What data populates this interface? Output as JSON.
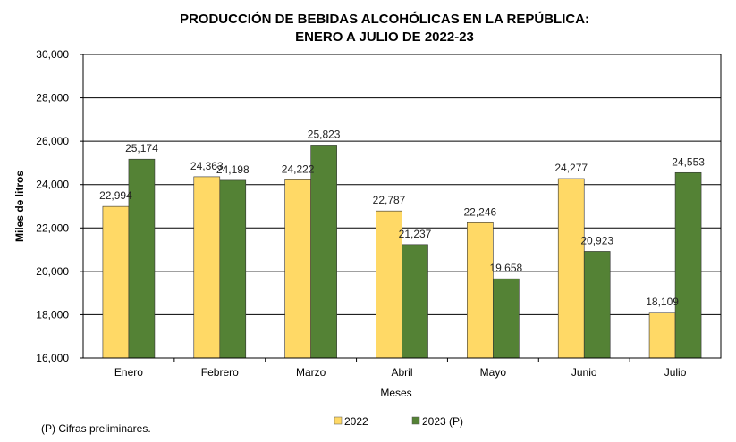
{
  "chart_data": {
    "type": "bar",
    "title_lines": [
      "PRODUCCIÓN DE BEBIDAS ALCOHÓLICAS EN LA REPÚBLICA:",
      "ENERO A JULIO DE 2022-23"
    ],
    "xlabel": "Meses",
    "ylabel": "Miles de litros",
    "ylim": [
      16000,
      30000
    ],
    "yticks": [
      16000,
      18000,
      20000,
      22000,
      24000,
      26000,
      28000,
      30000
    ],
    "ytick_labels": [
      "16,000",
      "18,000",
      "20,000",
      "22,000",
      "24,000",
      "26,000",
      "28,000",
      "30,000"
    ],
    "grid": true,
    "legend_position": "bottom",
    "categories": [
      "Enero",
      "Febrero",
      "Marzo",
      "Abril",
      "Mayo",
      "Junio",
      "Julio"
    ],
    "series": [
      {
        "name": "2022",
        "color": "#FFD966",
        "values": [
          22994,
          24363,
          24222,
          22787,
          22246,
          24277,
          18109
        ],
        "labels": [
          "22,994",
          "24,363",
          "24,222",
          "22,787",
          "22,246",
          "24,277",
          "18,109"
        ]
      },
      {
        "name": "2023 (P)",
        "color": "#548235",
        "values": [
          25174,
          24198,
          25823,
          21237,
          19658,
          20923,
          24553
        ],
        "labels": [
          "25,174",
          "24,198",
          "25,823",
          "21,237",
          "19,658",
          "20,923",
          "24,553"
        ]
      }
    ]
  },
  "footnote": "(P) Cifras  preliminares."
}
